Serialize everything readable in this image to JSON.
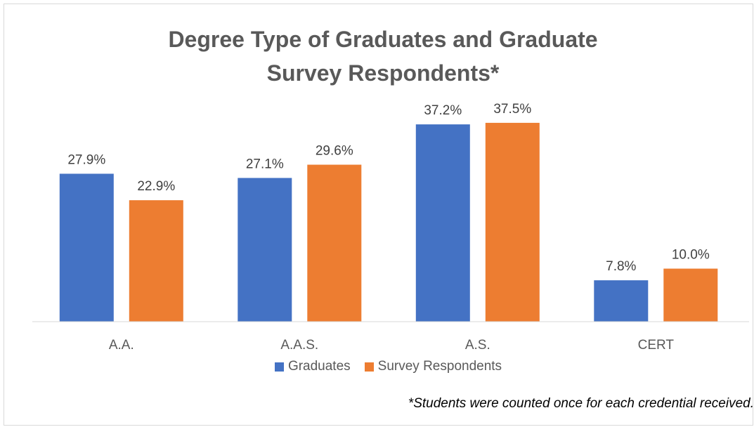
{
  "chart_data": {
    "type": "bar",
    "title_lines": [
      "Degree Type of Graduates and Graduate",
      "Survey Respondents*"
    ],
    "categories": [
      "A.A.",
      "A.A.S.",
      "A.S.",
      "CERT"
    ],
    "series": [
      {
        "name": "Graduates",
        "values": [
          27.9,
          27.1,
          37.2,
          7.8
        ],
        "labels": [
          "27.9%",
          "27.1%",
          "37.2%",
          "7.8%"
        ],
        "color": "#4472c4"
      },
      {
        "name": "Survey Respondents",
        "values": [
          22.9,
          29.6,
          37.5,
          10.0
        ],
        "labels": [
          "22.9%",
          "29.6%",
          "37.5%",
          "10.0%"
        ],
        "color": "#ed7d31"
      }
    ],
    "ylim": [
      0,
      40
    ],
    "grid": false,
    "legend_position": "bottom",
    "xlabel": "",
    "ylabel": ""
  },
  "footnote": "*Students were counted once for each credential received."
}
